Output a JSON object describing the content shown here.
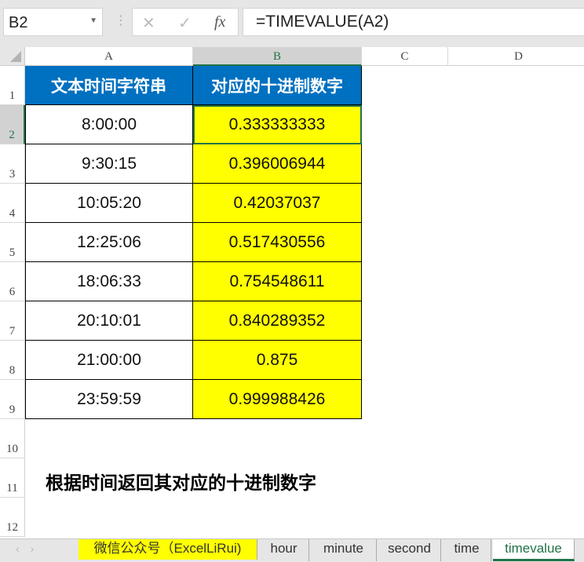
{
  "name_box": "B2",
  "formula": "=TIMEVALUE(A2)",
  "columns": [
    "A",
    "B",
    "C",
    "D"
  ],
  "rows": [
    "1",
    "2",
    "3",
    "4",
    "5",
    "6",
    "7",
    "8",
    "9",
    "10",
    "11",
    "12"
  ],
  "headers": [
    "文本时间字符串",
    "对应的十进制数字"
  ],
  "data": [
    [
      "8:00:00",
      "0.333333333"
    ],
    [
      "9:30:15",
      "0.396006944"
    ],
    [
      "10:05:20",
      "0.42037037"
    ],
    [
      "12:25:06",
      "0.517430556"
    ],
    [
      "18:06:33",
      "0.754548611"
    ],
    [
      "20:10:01",
      "0.840289352"
    ],
    [
      "21:00:00",
      "0.875"
    ],
    [
      "23:59:59",
      "0.999988426"
    ]
  ],
  "note": "根据时间返回其对应的十进制数字",
  "sheets": [
    "微信公众号（ExcelLiRui)",
    "hour",
    "minute",
    "second",
    "time",
    "timevalue"
  ],
  "active_sheet": "timevalue",
  "colors": {
    "header": "#0070c0",
    "value_fill": "#ffff00",
    "accent": "#217346"
  }
}
